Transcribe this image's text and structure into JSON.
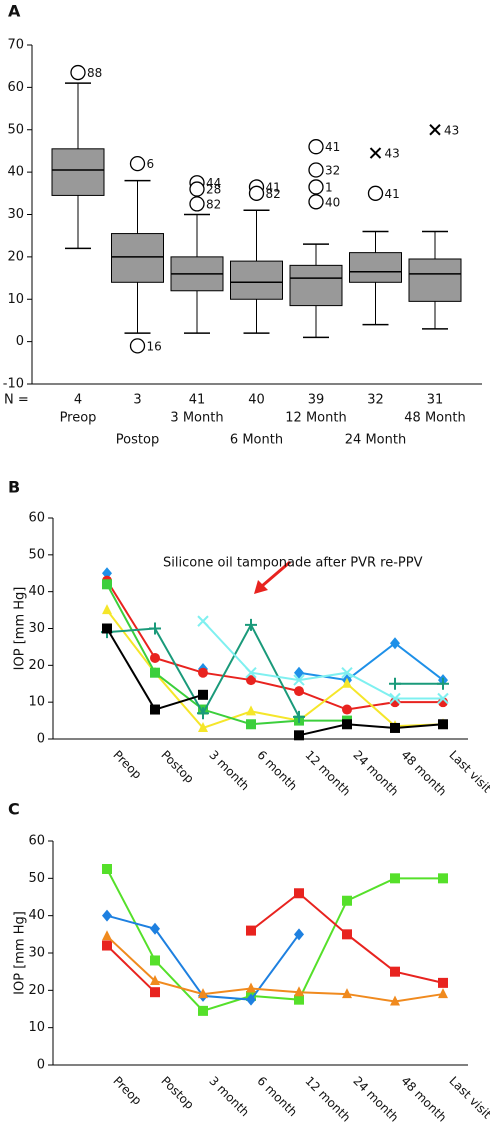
{
  "chart_data": [
    {
      "type": "box",
      "label": "A",
      "ylim": [
        -10,
        70
      ],
      "yticks": [
        -10,
        0,
        10,
        20,
        30,
        40,
        50,
        60,
        70
      ],
      "color": "#999999",
      "categories": [
        "Preop",
        "Postop",
        "3 Month",
        "6 Month",
        "12 Month",
        "24 Month",
        "48 Month"
      ],
      "n_label": "N =",
      "n": [
        4,
        3,
        41,
        40,
        39,
        32,
        31
      ],
      "boxes": [
        {
          "whisker_low": 22,
          "q1": 34.5,
          "median": 40.5,
          "q3": 45.5,
          "whisker_high": 61,
          "outliers": [
            {
              "value": 63.5,
              "label": "88",
              "marker": "circle"
            }
          ]
        },
        {
          "whisker_low": 2,
          "q1": 14,
          "median": 20,
          "q3": 25.5,
          "whisker_high": 38,
          "outliers": [
            {
              "value": 42,
              "label": "6",
              "marker": "circle"
            },
            {
              "value": -1,
              "label": "16",
              "marker": "circle"
            }
          ]
        },
        {
          "whisker_low": 2,
          "q1": 12,
          "median": 16,
          "q3": 20,
          "whisker_high": 30,
          "outliers": [
            {
              "value": 37.5,
              "label": "44",
              "marker": "circle"
            },
            {
              "value": 36,
              "label": "28",
              "marker": "circle"
            },
            {
              "value": 32.5,
              "label": "82",
              "marker": "circle"
            }
          ]
        },
        {
          "whisker_low": 2,
          "q1": 10,
          "median": 14,
          "q3": 19,
          "whisker_high": 31,
          "outliers": [
            {
              "value": 36.5,
              "label": "41",
              "marker": "circle"
            },
            {
              "value": 35,
              "label": "82",
              "marker": "circle"
            }
          ]
        },
        {
          "whisker_low": 1,
          "q1": 8.5,
          "median": 15,
          "q3": 18,
          "whisker_high": 23,
          "outliers": [
            {
              "value": 46,
              "label": "41",
              "marker": "circle"
            },
            {
              "value": 40.5,
              "label": "32",
              "marker": "circle"
            },
            {
              "value": 36.5,
              "label": "1",
              "marker": "circle"
            },
            {
              "value": 33,
              "label": "40",
              "marker": "circle"
            }
          ]
        },
        {
          "whisker_low": 4,
          "q1": 14,
          "median": 16.5,
          "q3": 21,
          "whisker_high": 26,
          "outliers": [
            {
              "value": 44.5,
              "label": "43",
              "marker": "x"
            },
            {
              "value": 35,
              "label": "41",
              "marker": "circle"
            }
          ]
        },
        {
          "whisker_low": 3,
          "q1": 9.5,
          "median": 16,
          "q3": 19.5,
          "whisker_high": 26,
          "outliers": [
            {
              "value": 50,
              "label": "43",
              "marker": "x"
            }
          ]
        }
      ]
    },
    {
      "type": "line",
      "label": "B",
      "y_label": "IOP [mm Hg]",
      "ylim": [
        0,
        60
      ],
      "yticks": [
        0,
        10,
        20,
        30,
        40,
        50,
        60
      ],
      "annotation": "Silicone oil tamponade after PVR re-PPV",
      "categories": [
        "Preop",
        "Postop",
        "3 month",
        "6 month",
        "12 month",
        "24 month",
        "48 month",
        "Last visit"
      ],
      "series": [
        {
          "color": "#1e90e8",
          "marker": "diamond",
          "values": [
            45,
            null,
            19,
            null,
            18,
            16,
            26,
            16
          ]
        },
        {
          "color": "#e8231f",
          "marker": "circle",
          "values": [
            43,
            22,
            18,
            16,
            13,
            8,
            10,
            10
          ]
        },
        {
          "color": "#f5e62a",
          "marker": "triangle",
          "values": [
            35,
            18,
            3,
            7.5,
            5,
            15,
            3.5,
            4
          ]
        },
        {
          "color": "#3ccf3c",
          "marker": "square",
          "values": [
            42,
            18,
            8,
            4,
            5,
            5,
            null,
            null
          ]
        },
        {
          "color": "#1a9a7a",
          "marker": "plus",
          "values": [
            29,
            30,
            7,
            31,
            6,
            null,
            15,
            15
          ]
        },
        {
          "color": "#7ff0f0",
          "marker": "x",
          "values": [
            null,
            null,
            32,
            18,
            16,
            18,
            11,
            11
          ]
        },
        {
          "color": "#000000",
          "marker": "square",
          "values": [
            30,
            8,
            12,
            null,
            1,
            4,
            3,
            4
          ]
        }
      ]
    },
    {
      "type": "line",
      "label": "C",
      "y_label": "IOP [mm Hg]",
      "ylim": [
        0,
        60
      ],
      "yticks": [
        0,
        10,
        20,
        30,
        40,
        50,
        60
      ],
      "categories": [
        "Preop",
        "Postop",
        "3 month",
        "6 month",
        "12 month",
        "24 month",
        "48 month",
        "Last visit"
      ],
      "series": [
        {
          "color": "#55e02a",
          "marker": "square",
          "values": [
            52.5,
            28,
            14.5,
            18.5,
            17.5,
            44,
            50,
            50
          ]
        },
        {
          "color": "#1e80e0",
          "marker": "diamond",
          "values": [
            40,
            36.5,
            18.5,
            17.5,
            35,
            null,
            null,
            null
          ]
        },
        {
          "color": "#e8231f",
          "marker": "square",
          "values": [
            32,
            19.5,
            null,
            36,
            46,
            35,
            25,
            22
          ]
        },
        {
          "color": "#f08a1e",
          "marker": "triangle",
          "values": [
            34.5,
            22.5,
            19,
            20.5,
            19.5,
            19,
            17,
            19
          ]
        }
      ]
    }
  ]
}
